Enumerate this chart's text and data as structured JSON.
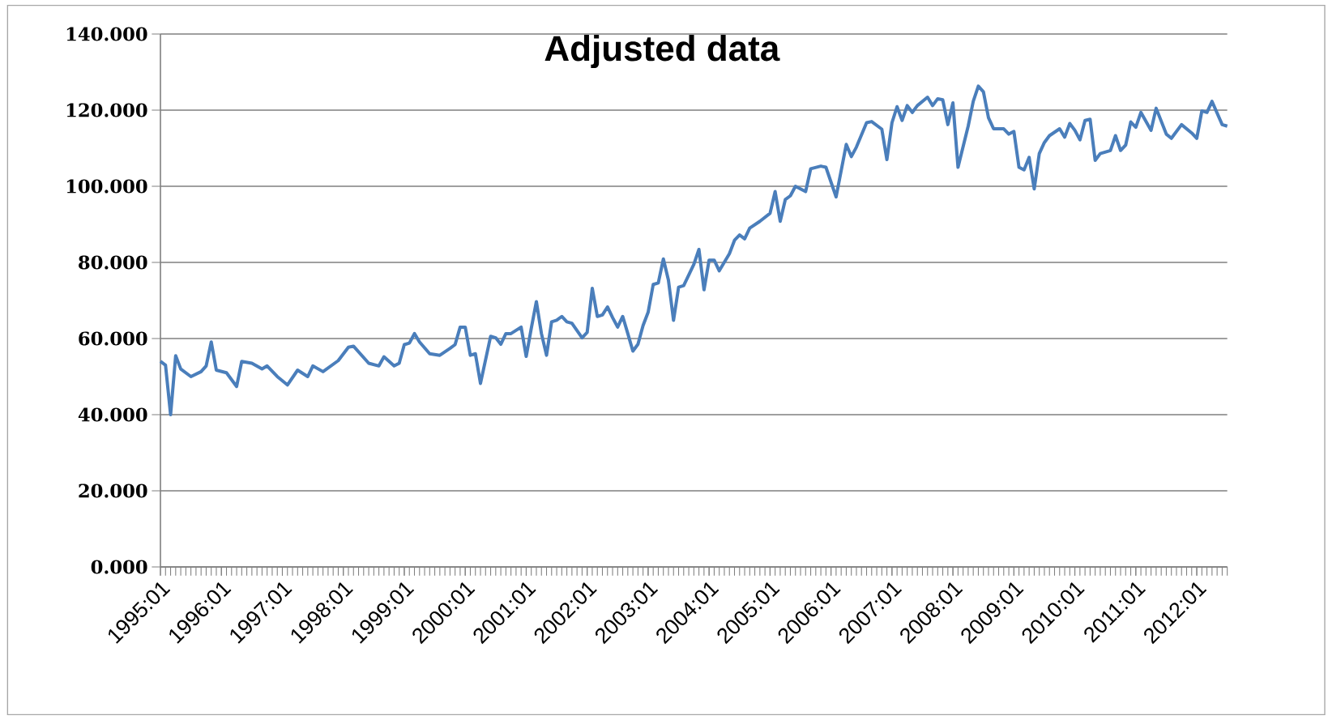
{
  "chart_data": {
    "type": "line",
    "title": "Adjusted data",
    "x": [
      "1995-01",
      "1995-02",
      "1995-03",
      "1995-04",
      "1995-05",
      "1995-07",
      "1995-09",
      "1995-10",
      "1995-11",
      "1995-12",
      "1996-02",
      "1996-04",
      "1996-05",
      "1996-07",
      "1996-09",
      "1996-10",
      "1996-12",
      "1997-02",
      "1997-04",
      "1997-06",
      "1997-07",
      "1997-09",
      "1997-12",
      "1998-02",
      "1998-03",
      "1998-06",
      "1998-08",
      "1998-09",
      "1998-11",
      "1998-12",
      "1999-01",
      "1999-02",
      "1999-03",
      "1999-04",
      "1999-06",
      "1999-08",
      "1999-10",
      "1999-11",
      "1999-12",
      "2000-01",
      "2000-02",
      "2000-03",
      "2000-04",
      "2000-06",
      "2000-07",
      "2000-08",
      "2000-09",
      "2000-10",
      "2000-12",
      "2001-01",
      "2001-02",
      "2001-03",
      "2001-04",
      "2001-05",
      "2001-06",
      "2001-07",
      "2001-08",
      "2001-09",
      "2001-10",
      "2001-12",
      "2002-01",
      "2002-02",
      "2002-03",
      "2002-04",
      "2002-05",
      "2002-06",
      "2002-07",
      "2002-08",
      "2002-09",
      "2002-10",
      "2002-11",
      "2002-12",
      "2003-01",
      "2003-02",
      "2003-03",
      "2003-04",
      "2003-05",
      "2003-06",
      "2003-07",
      "2003-08",
      "2003-10",
      "2003-11",
      "2003-12",
      "2004-01",
      "2004-02",
      "2004-03",
      "2004-05",
      "2004-06",
      "2004-07",
      "2004-08",
      "2004-09",
      "2004-11",
      "2005-01",
      "2005-02",
      "2005-03",
      "2005-04",
      "2005-05",
      "2005-06",
      "2005-08",
      "2005-09",
      "2005-11",
      "2005-12",
      "2006-02",
      "2006-04",
      "2006-05",
      "2006-06",
      "2006-08",
      "2006-09",
      "2006-11",
      "2006-12",
      "2007-01",
      "2007-02",
      "2007-03",
      "2007-04",
      "2007-05",
      "2007-06",
      "2007-08",
      "2007-09",
      "2007-10",
      "2007-11",
      "2007-12",
      "2008-01",
      "2008-02",
      "2008-04",
      "2008-05",
      "2008-06",
      "2008-07",
      "2008-08",
      "2008-09",
      "2008-11",
      "2008-12",
      "2009-01",
      "2009-02",
      "2009-03",
      "2009-04",
      "2009-05",
      "2009-06",
      "2009-07",
      "2009-08",
      "2009-10",
      "2009-11",
      "2009-12",
      "2010-01",
      "2010-02",
      "2010-03",
      "2010-04",
      "2010-05",
      "2010-06",
      "2010-08",
      "2010-09",
      "2010-10",
      "2010-11",
      "2010-12",
      "2011-01",
      "2011-02",
      "2011-04",
      "2011-05",
      "2011-07",
      "2011-08",
      "2011-10",
      "2011-12",
      "2012-01",
      "2012-02",
      "2012-03",
      "2012-04",
      "2012-06",
      "2012-07"
    ],
    "series": [
      {
        "color": "#4a7ebb",
        "values": [
          54,
          53,
          40,
          55.5,
          52,
          50,
          51.3,
          52.8,
          59.1,
          51.7,
          51,
          47.4,
          54,
          53.5,
          52,
          52.8,
          50,
          47.8,
          51.7,
          50,
          52.8,
          51.3,
          54.2,
          57.7,
          58,
          53.5,
          52.8,
          55.2,
          52.8,
          53.5,
          58.4,
          58.8,
          61.3,
          59.1,
          56,
          55.6,
          57.4,
          58.4,
          63,
          63,
          55.6,
          56,
          48.2,
          60.6,
          60.2,
          58.5,
          61.3,
          61.3,
          63,
          55.3,
          62.7,
          69.7,
          61.3,
          55.6,
          64.4,
          64.8,
          65.8,
          64.4,
          64,
          60.2,
          61.6,
          73.2,
          65.8,
          66.2,
          68.3,
          65.5,
          63,
          65.8,
          61.3,
          56.7,
          58.5,
          63.4,
          66.9,
          74.2,
          74.6,
          80.9,
          75.3,
          64.8,
          73.5,
          73.9,
          79.5,
          83.4,
          72.8,
          80.6,
          80.6,
          77.8,
          82.3,
          85.8,
          87.2,
          86.2,
          89,
          90.8,
          92.9,
          98.6,
          90.8,
          96.5,
          97.5,
          100,
          98.6,
          104.6,
          105.3,
          105,
          97.2,
          111,
          107.8,
          110.3,
          116.7,
          117,
          115,
          107,
          116.7,
          120.9,
          117.3,
          121.2,
          119.4,
          121.2,
          123.4,
          121.2,
          123,
          122.7,
          116.2,
          121.9,
          105,
          115.8,
          122.3,
          126.3,
          124.8,
          118,
          115.1,
          115.1,
          113.7,
          114.4,
          105,
          104.3,
          107.6,
          99.3,
          108.6,
          111.5,
          113.3,
          115.1,
          112.9,
          116.5,
          114.7,
          112.2,
          117.3,
          117.6,
          106.8,
          108.6,
          109.4,
          113.3,
          109.4,
          110.8,
          116.9,
          115.5,
          119.4,
          114.7,
          120.5,
          113.7,
          112.6,
          116.2,
          114,
          112.6,
          119.8,
          119.4,
          122.3,
          116.2,
          115.8
        ]
      }
    ],
    "xlim": [
      "1995-01",
      "2012-07"
    ],
    "xticks": [
      {
        "value": "1995-01",
        "label": "1995:01"
      },
      {
        "value": "1996-01",
        "label": "1996:01"
      },
      {
        "value": "1997-01",
        "label": "1997:01"
      },
      {
        "value": "1998-01",
        "label": "1998:01"
      },
      {
        "value": "1999-01",
        "label": "1999:01"
      },
      {
        "value": "2000-01",
        "label": "2000:01"
      },
      {
        "value": "2001-01",
        "label": "2001:01"
      },
      {
        "value": "2002-01",
        "label": "2002:01"
      },
      {
        "value": "2003-01",
        "label": "2003:01"
      },
      {
        "value": "2004-01",
        "label": "2004:01"
      },
      {
        "value": "2005-01",
        "label": "2005:01"
      },
      {
        "value": "2006-01",
        "label": "2006:01"
      },
      {
        "value": "2007-01",
        "label": "2007:01"
      },
      {
        "value": "2008-01",
        "label": "2008:01"
      },
      {
        "value": "2009-01",
        "label": "2009:01"
      },
      {
        "value": "2010-01",
        "label": "2010:01"
      },
      {
        "value": "2011-01",
        "label": "2011:01"
      },
      {
        "value": "2012-01",
        "label": "2012:01"
      }
    ],
    "ylim": [
      0,
      140
    ],
    "yticks": [
      {
        "value": 0,
        "label": "0.000"
      },
      {
        "value": 20,
        "label": "20.000"
      },
      {
        "value": 40,
        "label": "40.000"
      },
      {
        "value": 60,
        "label": "60.000"
      },
      {
        "value": 80,
        "label": "80.000"
      },
      {
        "value": 100,
        "label": "100.000"
      },
      {
        "value": 120,
        "label": "120.000"
      },
      {
        "value": 140,
        "label": "140.000"
      }
    ],
    "grid": "y"
  }
}
